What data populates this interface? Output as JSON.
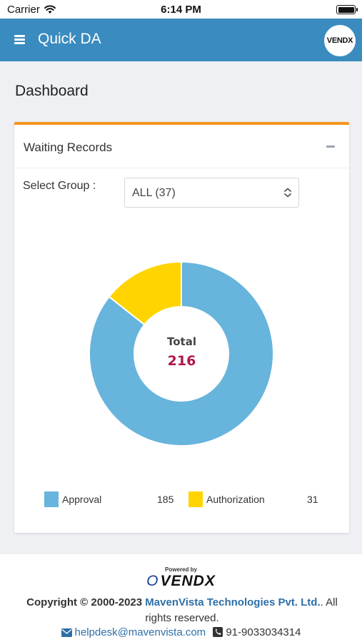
{
  "status_bar": {
    "carrier": "Carrier",
    "time": "6:14 PM"
  },
  "header": {
    "title": "Quick DA",
    "logo_text": "VENDX"
  },
  "page": {
    "title": "Dashboard"
  },
  "card": {
    "title": "Waiting Records",
    "select_label": "Select Group :",
    "select_value": "ALL (37)"
  },
  "chart_data": {
    "type": "pie",
    "donut": true,
    "center_label": "Total",
    "center_value": "216",
    "series": [
      {
        "name": "Approval",
        "value": 185,
        "color": "#67b4dc"
      },
      {
        "name": "Authorization",
        "value": 31,
        "color": "#ffd400"
      }
    ]
  },
  "legend": [
    {
      "label": "Approval",
      "value": "185"
    },
    {
      "label": "Authorization",
      "value": "31"
    }
  ],
  "footer": {
    "powered_by": "Powered by",
    "logo_text": "VENDX",
    "copyright_prefix": "Copyright © 2000-2023 ",
    "company": "MavenVista Technologies Pvt. Ltd.",
    "copyright_suffix": ". All rights reserved.",
    "email": "helpdesk@mavenvista.com",
    "phone": "91-9033034314"
  },
  "colors": {
    "header_bg": "#3a8bbf",
    "accent": "#f7941d",
    "total_value": "#b0164e"
  }
}
